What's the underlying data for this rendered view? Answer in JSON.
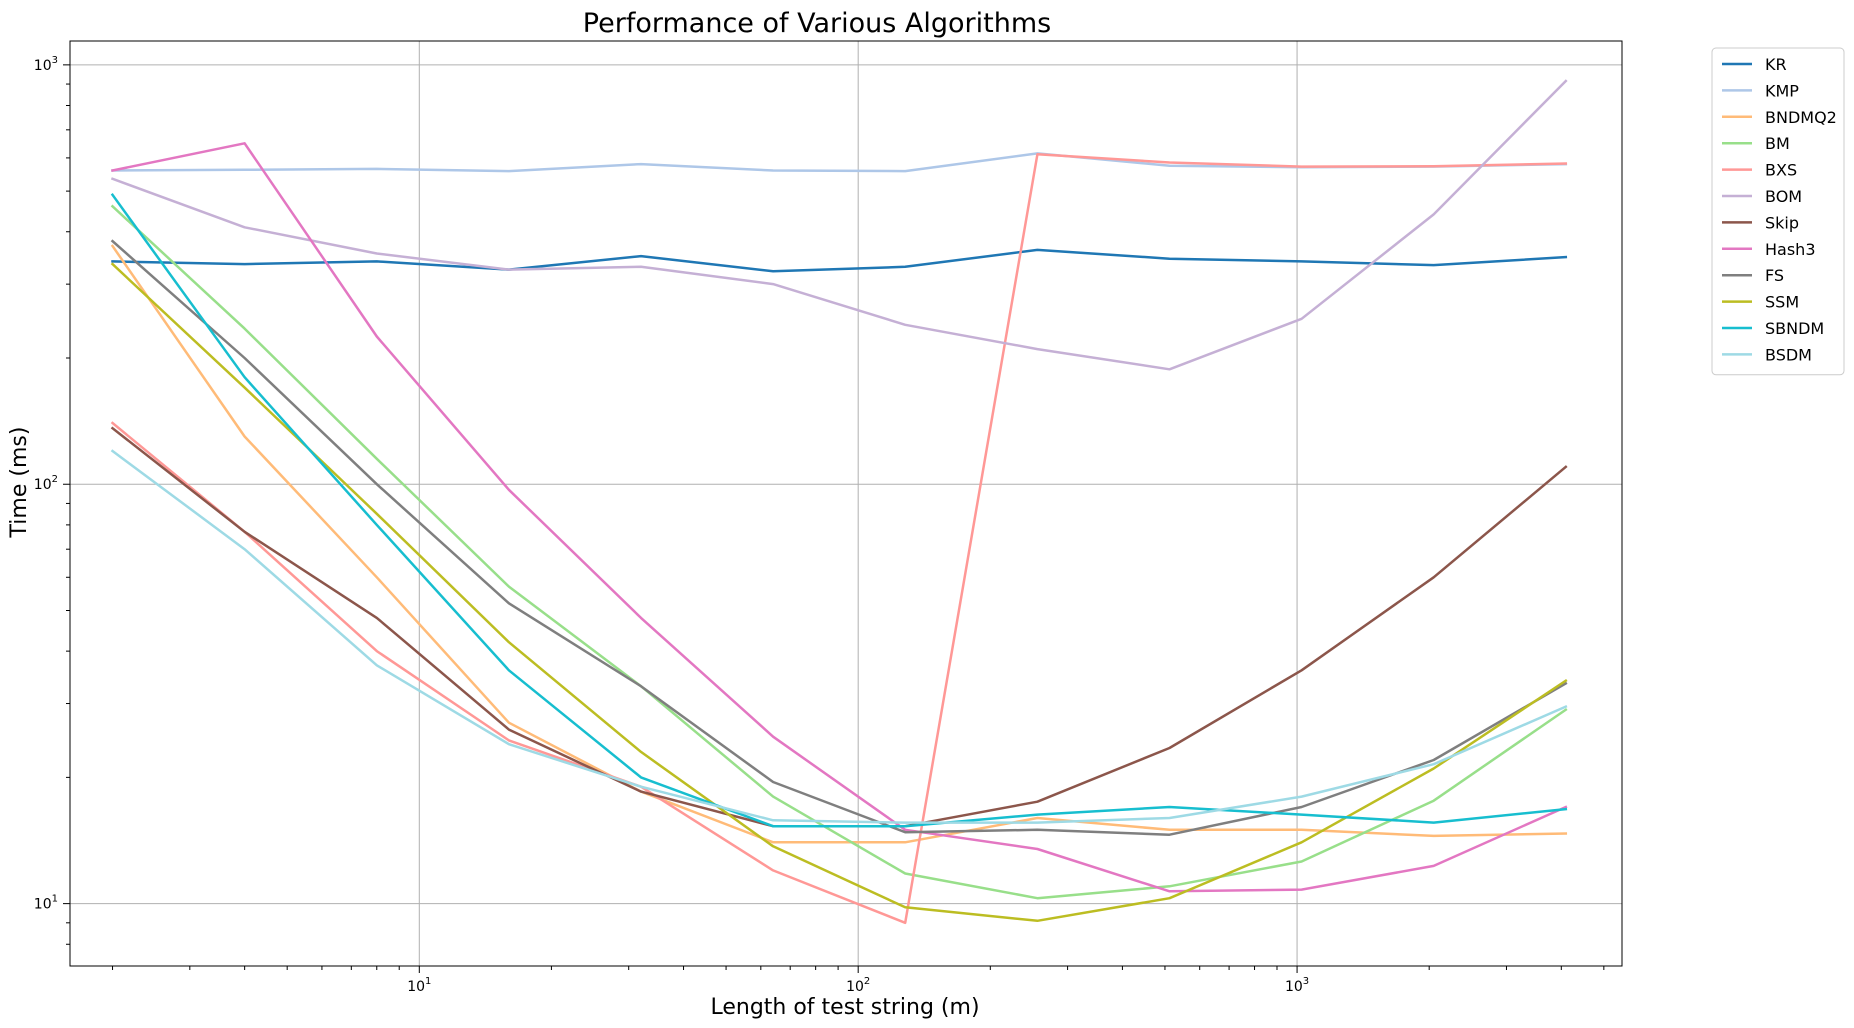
{
  "chart_data": {
    "type": "line",
    "title": "Performance of Various Algorithms",
    "xlabel": "Length of test string (m)",
    "ylabel": "Time (ms)",
    "xscale": "log",
    "yscale": "log",
    "xlim": [
      1.6,
      5500
    ],
    "ylim": [
      7.1,
      1140
    ],
    "grid": true,
    "legend_position": "outside-top-right",
    "x_ticks": [
      {
        "value": 10,
        "base": "10",
        "exp": "1"
      },
      {
        "value": 100,
        "base": "10",
        "exp": "2"
      },
      {
        "value": 1000,
        "base": "10",
        "exp": "3"
      }
    ],
    "y_ticks": [
      {
        "value": 10,
        "base": "10",
        "exp": "1"
      },
      {
        "value": 100,
        "base": "10",
        "exp": "2"
      },
      {
        "value": 1000,
        "base": "10",
        "exp": "3"
      }
    ],
    "x": [
      2,
      4,
      8,
      16,
      32,
      64,
      128,
      256,
      512,
      1024,
      2048,
      4096
    ],
    "series": [
      {
        "name": "KR",
        "color": "#1f77b4",
        "values": [
          340,
          335,
          340,
          325,
          350,
          322,
          330,
          362,
          345,
          340,
          333,
          348
        ]
      },
      {
        "name": "KMP",
        "color": "#aec7e8",
        "values": [
          560,
          562,
          565,
          558,
          580,
          560,
          558,
          615,
          575,
          570,
          572,
          580
        ]
      },
      {
        "name": "BNDMQ2",
        "color": "#ffbb78",
        "values": [
          370,
          130,
          60,
          27,
          18.5,
          14,
          14,
          16,
          15,
          15,
          14.5,
          14.7
        ]
      },
      {
        "name": "BM",
        "color": "#98df8a",
        "values": [
          460,
          235,
          115,
          57,
          33,
          18,
          11.8,
          10.3,
          11,
          12.6,
          17.6,
          29
        ]
      },
      {
        "name": "BXS",
        "color": "#ff9896",
        "values": [
          140,
          77,
          40,
          24.5,
          19,
          12,
          9,
          612,
          585,
          572,
          573,
          582
        ]
      },
      {
        "name": "BOM",
        "color": "#c5b0d5",
        "values": [
          535,
          410,
          355,
          325,
          330,
          300,
          240,
          210,
          188,
          248,
          440,
          915
        ]
      },
      {
        "name": "Skip",
        "color": "#8c564b",
        "values": [
          136,
          77,
          48,
          26,
          18.5,
          15.3,
          15.3,
          17.5,
          23.5,
          36,
          60,
          110
        ]
      },
      {
        "name": "Hash3",
        "color": "#e377c2",
        "values": [
          560,
          650,
          225,
          97,
          48,
          25,
          15,
          13.5,
          10.7,
          10.8,
          12.3,
          17
        ]
      },
      {
        "name": "FS",
        "color": "#7f7f7f",
        "values": [
          380,
          200,
          100,
          52,
          33,
          19.5,
          14.8,
          15,
          14.6,
          17,
          22,
          33.5
        ]
      },
      {
        "name": "SSM",
        "color": "#bcbd22",
        "values": [
          335,
          170,
          85,
          42,
          23,
          13.7,
          9.8,
          9.1,
          10.3,
          14,
          21,
          34
        ]
      },
      {
        "name": "SBNDM",
        "color": "#17becf",
        "values": [
          490,
          180,
          80,
          36,
          20,
          15.3,
          15.3,
          16.3,
          17,
          16.3,
          15.6,
          16.8
        ]
      },
      {
        "name": "BSDM",
        "color": "#9edae5",
        "values": [
          120,
          70,
          37,
          24,
          19,
          15.8,
          15.6,
          15.6,
          16,
          18,
          21.5,
          29.5
        ]
      }
    ]
  }
}
